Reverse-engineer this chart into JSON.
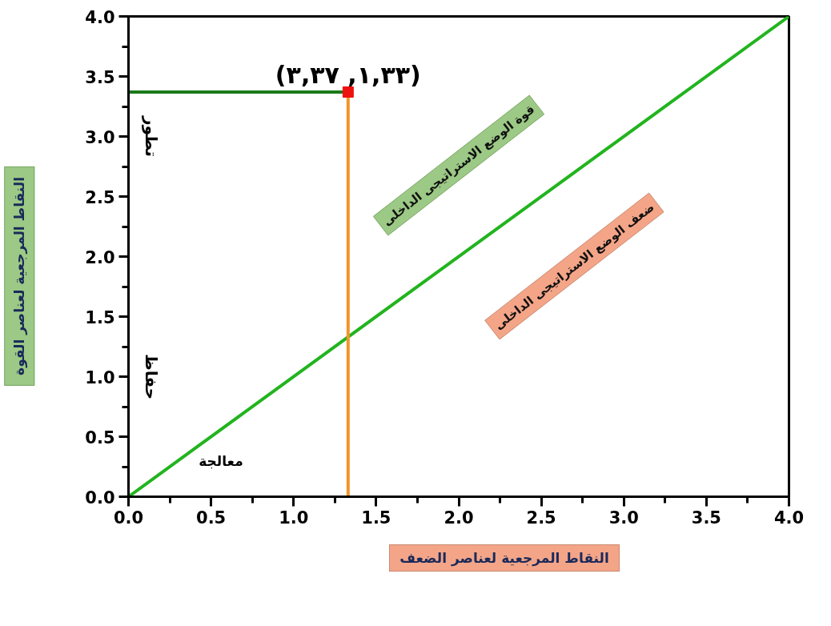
{
  "chart_data": {
    "type": "line",
    "xlabel": "النقاط المرجعية لعناصر الضعف",
    "ylabel": "النقاط المرجعية لعناصر القوة",
    "xlim": [
      0,
      4
    ],
    "ylim": [
      0,
      4
    ],
    "xticks": [
      {
        "value": 0,
        "label": "0.0"
      },
      {
        "value": 0.5,
        "label": "0.5"
      },
      {
        "value": 1,
        "label": "1.0"
      },
      {
        "value": 1.5,
        "label": "1.5"
      },
      {
        "value": 2,
        "label": "2.0"
      },
      {
        "value": 2.5,
        "label": "2.5"
      },
      {
        "value": 3,
        "label": "3.0"
      },
      {
        "value": 3.5,
        "label": "3.5"
      },
      {
        "value": 4,
        "label": "4.0"
      }
    ],
    "yticks": [
      {
        "value": 0,
        "label": "0.0"
      },
      {
        "value": 0.5,
        "label": "0.5"
      },
      {
        "value": 1,
        "label": "1.0"
      },
      {
        "value": 1.5,
        "label": "1.5"
      },
      {
        "value": 2,
        "label": "2.0"
      },
      {
        "value": 2.5,
        "label": "2.5"
      },
      {
        "value": 3,
        "label": "3.0"
      },
      {
        "value": 3.5,
        "label": "3.5"
      },
      {
        "value": 4,
        "label": "4.0"
      }
    ],
    "series": [
      {
        "color": "#22b41e",
        "x": [
          0,
          4
        ],
        "values": [
          0,
          4
        ]
      },
      {
        "color": "#1a7a1a",
        "x": [
          0,
          1.33
        ],
        "values": [
          3.37,
          3.37
        ]
      },
      {
        "color": "#f0962a",
        "x": [
          1.33,
          1.33
        ],
        "values": [
          0,
          3.37
        ]
      },
      {
        "type": "scatter",
        "color": "#ee1111",
        "marker": "square",
        "x": [
          1.33
        ],
        "values": [
          3.37
        ]
      }
    ],
    "annotations": [
      {
        "text": "(١,٣٣, ٣,٣٧)",
        "x": 1.33,
        "y": 3.37
      },
      "قوة الوضع الاستراتيجى الداخلى",
      "ضعف الوضع الاستراتيجى الداخلى",
      "تطور",
      "حفاظ",
      "معالجة"
    ],
    "grid": false
  }
}
